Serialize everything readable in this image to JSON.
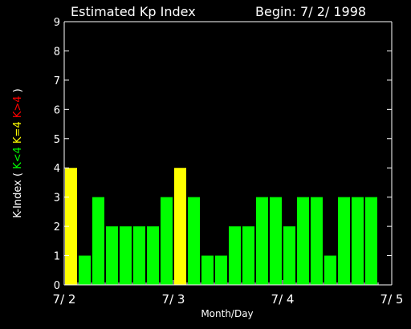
{
  "chart_data": {
    "type": "bar",
    "title": "Estimated Kp Index",
    "subtitle": "Begin: 7/ 2/ 1998",
    "xlabel": "Month/Day",
    "ylabel_parts": [
      {
        "text": "K-Index (",
        "color": "#ffffff"
      },
      {
        "text": "K<4",
        "color": "#00ff00"
      },
      {
        "text": "K=4",
        "color": "#ffff00"
      },
      {
        "text": "K>4",
        "color": "#ff0000"
      },
      {
        "text": ")",
        "color": "#ffffff"
      }
    ],
    "ylim": [
      0,
      9
    ],
    "yticks": [
      0,
      1,
      2,
      3,
      4,
      5,
      6,
      7,
      8,
      9
    ],
    "xlim": [
      0,
      24
    ],
    "xticks": [
      {
        "pos": 0,
        "label": "7/ 2"
      },
      {
        "pos": 8,
        "label": "7/ 3"
      },
      {
        "pos": 16,
        "label": "7/ 4"
      },
      {
        "pos": 24,
        "label": "7/ 5"
      }
    ],
    "values": [
      4,
      1,
      3,
      2,
      2,
      2,
      2,
      3,
      4,
      3,
      1,
      1,
      2,
      2,
      3,
      3,
      2,
      3,
      3,
      1,
      3,
      3,
      3
    ],
    "colors": {
      "below": "#00ff00",
      "equal": "#ffff00",
      "above": "#ff0000"
    },
    "axis_color": "#ffffff",
    "background": "#000000"
  }
}
